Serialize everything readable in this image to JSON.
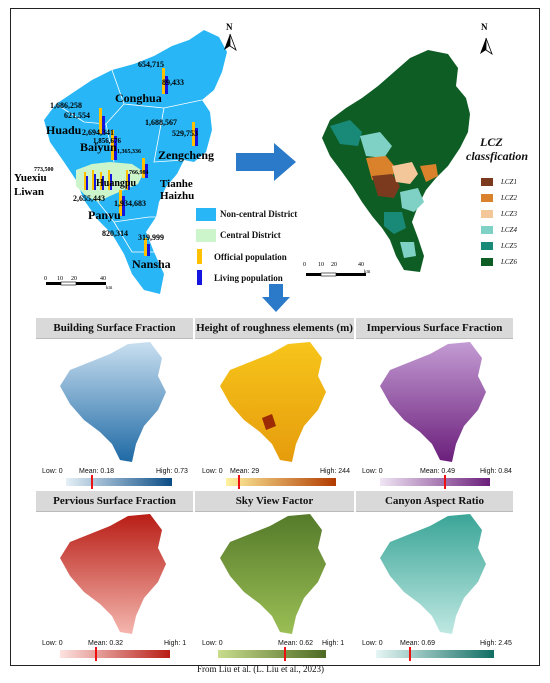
{
  "top_map": {
    "districts": {
      "conghua": "Conghua",
      "huadu": "Huadu",
      "baiyun": "Baiyun",
      "zengcheng": "Zengcheng",
      "yuexiu": "Yuexiu",
      "liwan": "Liwan",
      "tianhe": "Tianhe",
      "haizhu": "Haizhu",
      "huangpu": "Huangpu",
      "panyu": "Panyu",
      "nansha": "Nansha"
    },
    "numbers": {
      "conghua_official": "654,715",
      "conghua_living": "89,433",
      "huadu_official": "1,686,258",
      "huadu_living": "621,554",
      "baiyun_official": "2,694,341",
      "baiyun_living": "1,856,676",
      "zengcheng_official": "1,688,567",
      "zengcheng_living": "529,753",
      "huangpu_official": "1,365,336",
      "huangpu_living": "766,984",
      "panyu_official": "2,655,443",
      "panyu_living": "1,934,683",
      "nansha_official": "820,314",
      "nansha_living": "319,999",
      "yuexiu_figure": "773,500"
    },
    "legend": {
      "non_central": "Non-central District",
      "central": "Central District",
      "official": "Official population",
      "living": "Living population"
    },
    "north": "N",
    "scale": {
      "0": "0",
      "10": "10",
      "20": "20",
      "40": "40",
      "unit": "km"
    }
  },
  "lcz_map": {
    "title_line1": "LCZ",
    "title_line2": "classfication",
    "classes": [
      {
        "label": "LCZ1",
        "color": "#7b3a1e"
      },
      {
        "label": "LCZ2",
        "color": "#d9822b"
      },
      {
        "label": "LCZ3",
        "color": "#f4c79b"
      },
      {
        "label": "LCZ4",
        "color": "#7fd1c5"
      },
      {
        "label": "LCZ5",
        "color": "#1a8a78"
      },
      {
        "label": "LCZ6",
        "color": "#0e5d25"
      }
    ],
    "north": "N",
    "scale": {
      "0": "0",
      "10": "10",
      "20": "20",
      "40": "40",
      "unit": "km"
    }
  },
  "panels": [
    {
      "title": "Building Surface Fraction",
      "low": "Low: 0",
      "mean": "Mean: 0.18",
      "high": "High: 0.73",
      "mean_frac": 0.25,
      "c1": "#e6f0f7",
      "c2": "#0b4d86"
    },
    {
      "title": "Height of roughness elements (m)",
      "low": "Low: 0",
      "mean": "Mean: 29",
      "high": "High: 244",
      "mean_frac": 0.12,
      "c1": "#fff3a0",
      "c2": "#b23b00"
    },
    {
      "title": "Impervious Surface Fraction",
      "low": "Low: 0",
      "mean": "Mean: 0.49",
      "high": "High: 0.84",
      "mean_frac": 0.58,
      "c1": "#f0e6f4",
      "c2": "#6b1f7b"
    },
    {
      "title": "Pervious Surface Fraction",
      "low": "Low: 0",
      "mean": "Mean: 0.32",
      "high": "High: 1",
      "mean_frac": 0.32,
      "c1": "#fde3e0",
      "c2": "#b81d15"
    },
    {
      "title": "Sky View Factor",
      "low": "Low: 0",
      "mean": "Mean: 0.62",
      "high": "High: 1",
      "mean_frac": 0.62,
      "c1": "#c8dc8c",
      "c2": "#4e6a23"
    },
    {
      "title": "Canyon Aspect Ratio",
      "low": "Low: 0",
      "mean": "Mean: 0.69",
      "high": "High: 2.45",
      "mean_frac": 0.28,
      "c1": "#e6f6f4",
      "c2": "#0f6e63"
    }
  ],
  "caption": "From Liu et al. (L. Liu et al., 2023)",
  "colors": {
    "non_central": "#29b6f6",
    "central": "#ccf5cc",
    "official_bar": "#ffc000",
    "living_bar": "#1515e0",
    "arrow": "#2a7ac9"
  }
}
